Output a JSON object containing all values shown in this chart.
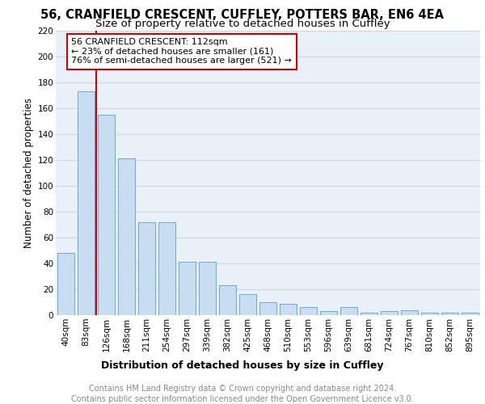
{
  "title1": "56, CRANFIELD CRESCENT, CUFFLEY, POTTERS BAR, EN6 4EA",
  "title2": "Size of property relative to detached houses in Cuffley",
  "xlabel": "Distribution of detached houses by size in Cuffley",
  "ylabel": "Number of detached properties",
  "footnote": "Contains HM Land Registry data © Crown copyright and database right 2024.\nContains public sector information licensed under the Open Government Licence v3.0.",
  "categories": [
    "40sqm",
    "83sqm",
    "126sqm",
    "168sqm",
    "211sqm",
    "254sqm",
    "297sqm",
    "339sqm",
    "382sqm",
    "425sqm",
    "468sqm",
    "510sqm",
    "553sqm",
    "596sqm",
    "639sqm",
    "681sqm",
    "724sqm",
    "767sqm",
    "810sqm",
    "852sqm",
    "895sqm"
  ],
  "values": [
    48,
    173,
    155,
    121,
    72,
    72,
    41,
    41,
    23,
    16,
    10,
    9,
    6,
    3,
    6,
    2,
    3,
    4,
    2,
    2,
    2
  ],
  "bar_color": "#c9ddf0",
  "bar_edge_color": "#6aaad4",
  "property_line_color": "#cc0000",
  "annotation_text": "56 CRANFIELD CRESCENT: 112sqm\n← 23% of detached houses are smaller (161)\n76% of semi-detached houses are larger (521) →",
  "annotation_box_color": "#cc0000",
  "ylim": [
    0,
    220
  ],
  "yticks": [
    0,
    20,
    40,
    60,
    80,
    100,
    120,
    140,
    160,
    180,
    200,
    220
  ],
  "grid_color": "#ccd6e8",
  "bg_color": "#eaf0f8",
  "title1_fontsize": 10.5,
  "title2_fontsize": 9.5,
  "xlabel_fontsize": 9,
  "ylabel_fontsize": 8.5,
  "tick_fontsize": 7.5,
  "footnote_fontsize": 7,
  "ann_fontsize": 8
}
